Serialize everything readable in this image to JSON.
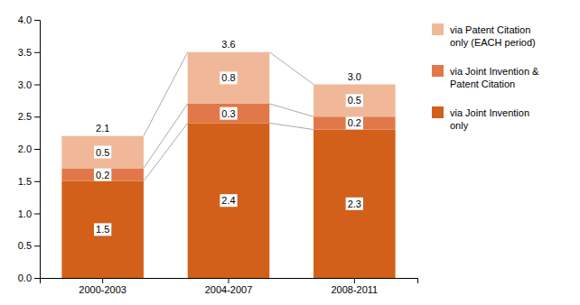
{
  "chart_data": {
    "type": "bar",
    "stacked": true,
    "data_labels": true,
    "legend": "right",
    "grid": false,
    "categories": [
      "2000-2003",
      "2004-2007",
      "2008-2011"
    ],
    "series": [
      {
        "name": "via Joint Invention\nonly",
        "color": "#d2601a",
        "values": [
          1.5,
          2.4,
          2.3
        ]
      },
      {
        "name": "via Joint Invention &\nPatent Citation",
        "color": "#e0784a",
        "values": [
          0.2,
          0.3,
          0.2
        ]
      },
      {
        "name": "via Patent Citation\nonly (EACH period)",
        "color": "#f0b898",
        "values": [
          0.5,
          0.8,
          0.5
        ]
      }
    ],
    "totals": [
      2.1,
      3.6,
      {
        "value": 3,
        "label": "3.0"
      }
    ],
    "ylim": [
      0,
      4
    ],
    "yticks": [
      {
        "value": 0,
        "label": "0.0"
      },
      0.5,
      {
        "value": 1,
        "label": "1.0"
      },
      1.5,
      {
        "value": 2,
        "label": "2.0"
      },
      2.5,
      {
        "value": 3,
        "label": "3.0"
      },
      3.5,
      {
        "value": 4,
        "label": "4.0"
      }
    ]
  }
}
